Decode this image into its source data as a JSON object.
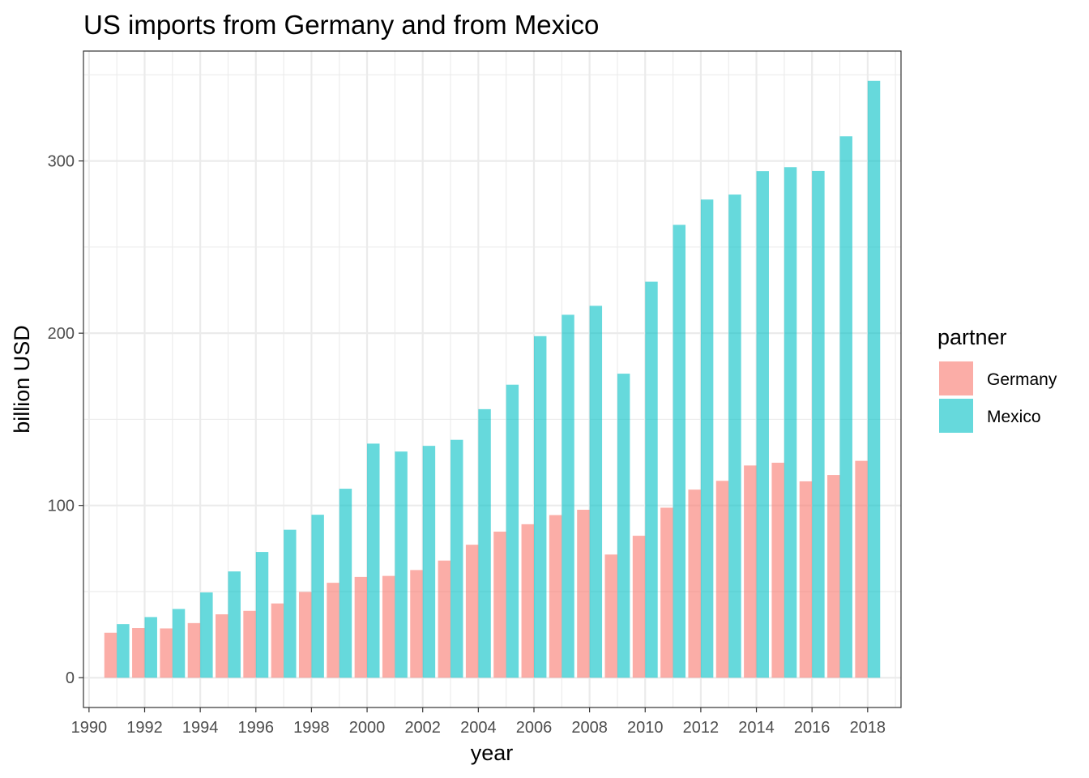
{
  "chart_data": {
    "type": "bar",
    "title": "US imports from Germany and from Mexico",
    "xlabel": "year",
    "ylabel": "billion USD",
    "categories": [
      1991,
      1992,
      1993,
      1994,
      1995,
      1996,
      1997,
      1998,
      1999,
      2000,
      2001,
      2002,
      2003,
      2004,
      2005,
      2006,
      2007,
      2008,
      2009,
      2010,
      2011,
      2012,
      2013,
      2014,
      2015,
      2016,
      2017,
      2018
    ],
    "series": [
      {
        "name": "Germany",
        "color": "#F8766D",
        "values": [
          26.1,
          28.8,
          28.6,
          31.7,
          36.8,
          38.8,
          43.1,
          49.8,
          55.1,
          58.5,
          59.1,
          62.5,
          68.0,
          77.2,
          84.8,
          89.1,
          94.4,
          97.5,
          71.5,
          82.4,
          98.7,
          109.2,
          114.3,
          123.2,
          124.8,
          114.0,
          117.7,
          125.9
        ]
      },
      {
        "name": "Mexico",
        "color": "#00BFC4",
        "values": [
          31.1,
          35.2,
          39.9,
          49.5,
          61.7,
          73.0,
          85.9,
          94.6,
          109.7,
          135.9,
          131.3,
          134.6,
          138.1,
          155.9,
          170.1,
          198.3,
          210.7,
          215.9,
          176.5,
          229.9,
          262.9,
          277.6,
          280.5,
          294.1,
          296.4,
          294.2,
          314.3,
          346.5
        ]
      }
    ],
    "x_ticks": [
      "1990",
      "1992",
      "1994",
      "1996",
      "1998",
      "2000",
      "2002",
      "2004",
      "2006",
      "2008",
      "2010",
      "2012",
      "2014",
      "2016",
      "2018"
    ],
    "y_ticks": [
      "0",
      "100",
      "200",
      "300"
    ],
    "xlim": [
      1989.8,
      2019.2
    ],
    "ylim": [
      -17.3,
      363.8
    ],
    "grid": true,
    "legend": {
      "title": "partner",
      "position": "right"
    },
    "theme": "bw"
  }
}
